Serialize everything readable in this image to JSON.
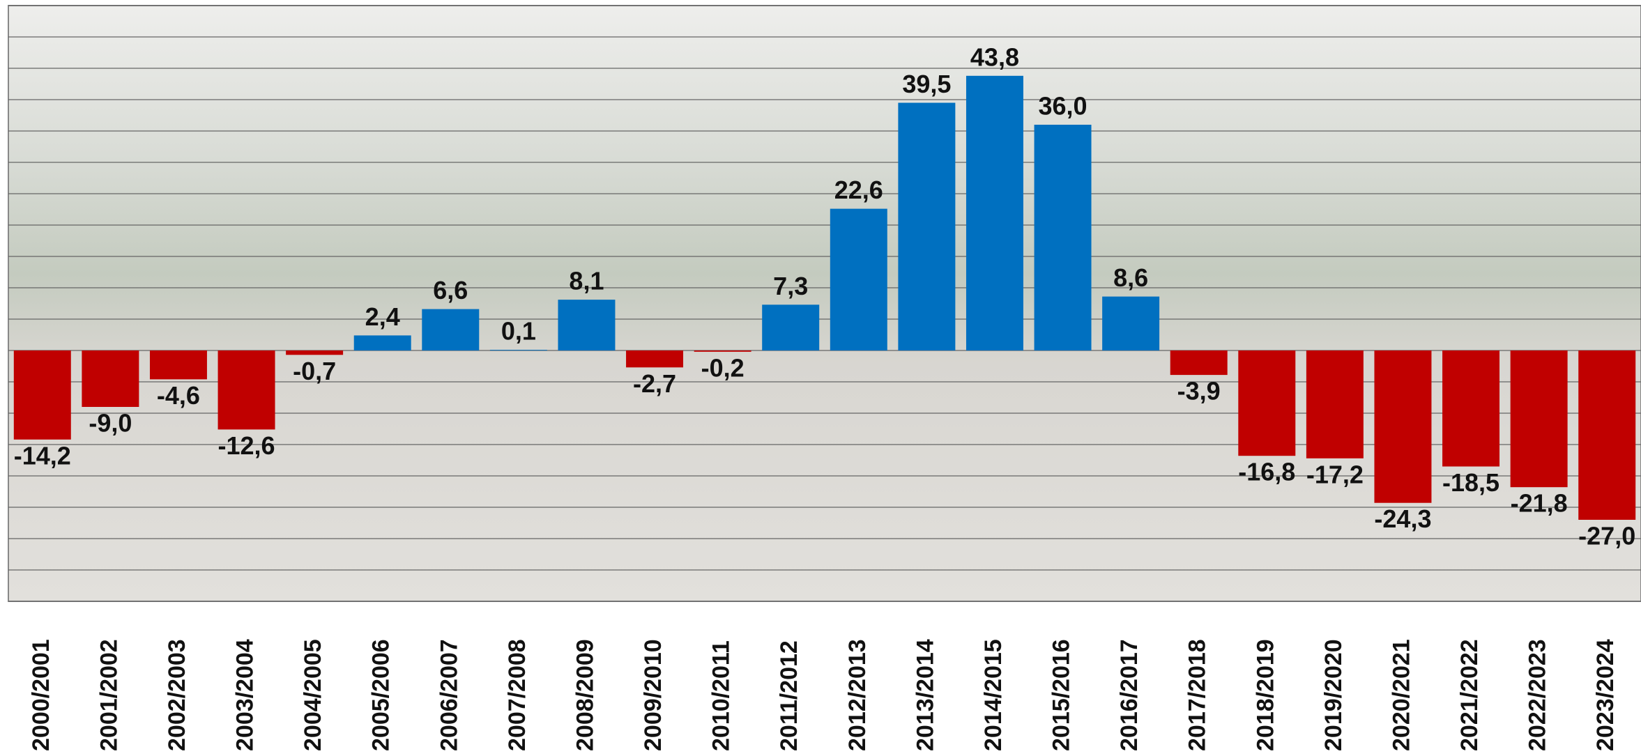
{
  "chart_data": {
    "type": "bar",
    "categories": [
      "2000/2001",
      "2001/2002",
      "2002/2003",
      "2003/2004",
      "2004/2005",
      "2005/2006",
      "2006/2007",
      "2007/2008",
      "2008/2009",
      "2009/2010",
      "2010/2011",
      "2011/2012",
      "2012/2013",
      "2013/2014",
      "2014/2015",
      "2015/2016",
      "2016/2017",
      "2017/2018",
      "2018/2019",
      "2019/2020",
      "2020/2021",
      "2021/2022",
      "2022/2023",
      "2023/2024"
    ],
    "values": [
      -14.2,
      -9.0,
      -4.6,
      -12.6,
      -0.7,
      2.4,
      6.6,
      0.1,
      8.1,
      -2.7,
      -0.2,
      7.3,
      22.6,
      39.5,
      43.8,
      36.0,
      8.6,
      -3.9,
      -16.8,
      -17.2,
      -24.3,
      -18.5,
      -21.8,
      -27.0
    ],
    "value_labels": [
      "-14,2",
      "-9,0",
      "-4,6",
      "-12,6",
      "-0,7",
      "2,4",
      "6,6",
      "0,1",
      "8,1",
      "-2,7",
      "-0,2",
      "7,3",
      "22,6",
      "39,5",
      "43,8",
      "36,0",
      "8,6",
      "-3,9",
      "-16,8",
      "-17,2",
      "-24,3",
      "-18,5",
      "-21,8",
      "-27,0"
    ],
    "colors": {
      "positive": "#0070c0",
      "negative": "#c00000"
    },
    "ylim": [
      -40,
      55
    ],
    "yticks": [
      -40,
      -35,
      -30,
      -25,
      -20,
      -15,
      -10,
      -5,
      0,
      5,
      10,
      15,
      20,
      25,
      30,
      35,
      40,
      45,
      50,
      55
    ],
    "grid": true
  }
}
